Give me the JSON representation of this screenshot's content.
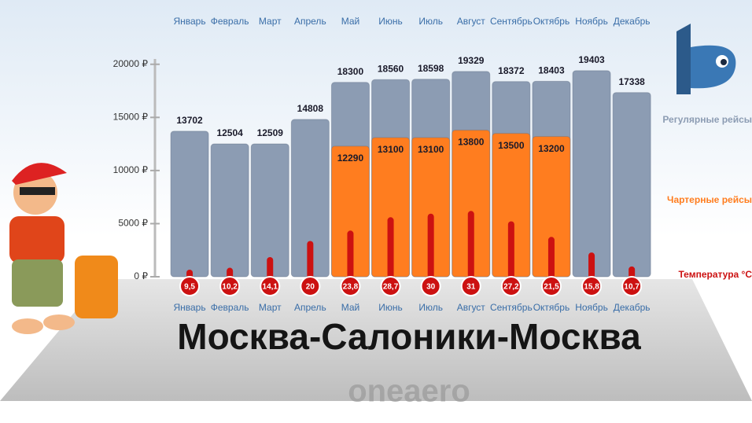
{
  "chart_data": {
    "type": "bar",
    "title": "Москва-Салоники-Москва",
    "brand": "oneaero",
    "categories": [
      "Январь",
      "Февраль",
      "Март",
      "Апрель",
      "Май",
      "Июнь",
      "Июль",
      "Август",
      "Сентябрь",
      "Октябрь",
      "Ноябрь",
      "Декабрь"
    ],
    "series": [
      {
        "name": "Регулярные рейсы",
        "color": "#8c9cb3",
        "values": [
          13702,
          12504,
          12509,
          14808,
          18300,
          18560,
          18598,
          19329,
          18372,
          18403,
          19403,
          17338
        ]
      },
      {
        "name": "Чартерные рейсы",
        "color": "#ff7d1f",
        "values": [
          null,
          null,
          null,
          null,
          12290,
          13100,
          13100,
          13800,
          13500,
          13200,
          null,
          null
        ]
      },
      {
        "name": "Температура °C",
        "color": "#cc1111",
        "axis": "y2",
        "values": [
          9.5,
          10.2,
          14.1,
          20,
          23.8,
          28.7,
          30,
          31,
          27.2,
          21.5,
          15.8,
          10.7
        ],
        "value_labels": [
          "9,5",
          "10,2",
          "14,1",
          "20",
          "23,8",
          "28,7",
          "30",
          "31",
          "27,2",
          "21,5",
          "15,8",
          "10,7"
        ]
      }
    ],
    "ylim": [
      0,
      20500
    ],
    "yticks": [
      {
        "value": 0,
        "label": "0 ₽"
      },
      {
        "value": 5000,
        "label": "5000 ₽"
      },
      {
        "value": 10000,
        "label": "10000 ₽"
      },
      {
        "value": 15000,
        "label": "15000 ₽"
      },
      {
        "value": 20000,
        "label": "20000 ₽"
      }
    ],
    "y2lim": [
      0,
      40
    ]
  }
}
